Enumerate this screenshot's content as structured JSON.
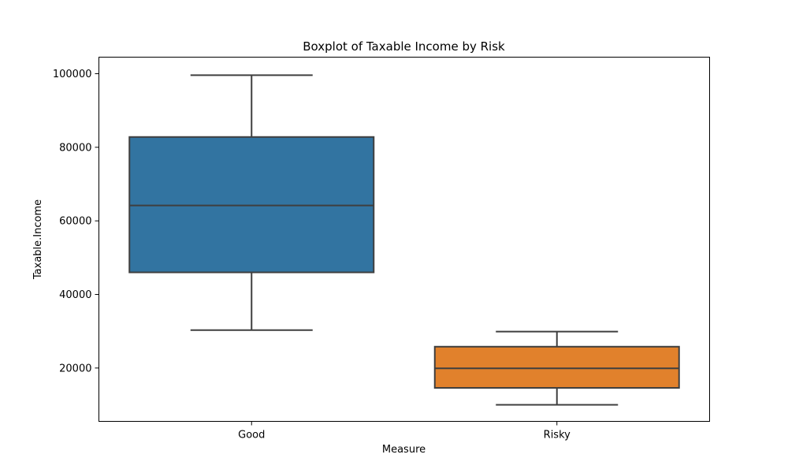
{
  "chart_data": {
    "type": "boxplot",
    "title": "Boxplot of Taxable Income by Risk",
    "xlabel": "Measure",
    "ylabel": "Taxable.Income",
    "ylim": [
      5500,
      104500
    ],
    "yticks": [
      20000,
      40000,
      60000,
      80000,
      100000
    ],
    "yticklabels": [
      "20000",
      "40000",
      "60000",
      "80000",
      "100000"
    ],
    "categories": [
      "Good",
      "Risky"
    ],
    "boxes": [
      {
        "category": "Good",
        "whisker_low": 30300,
        "q1": 46000,
        "median": 64200,
        "q3": 82800,
        "whisker_high": 99600,
        "color": "#3274a1"
      },
      {
        "category": "Risky",
        "whisker_low": 10000,
        "q1": 14600,
        "median": 19900,
        "q3": 25800,
        "whisker_high": 29900,
        "color": "#e1812c"
      }
    ],
    "line_color": "#3f3f3f",
    "grid": false,
    "legend": "none"
  }
}
